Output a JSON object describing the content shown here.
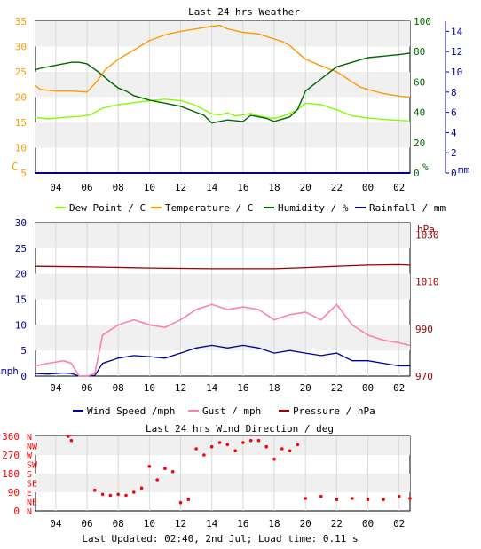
{
  "chart_data": [
    {
      "type": "line",
      "title": "Last 24 hrs Weather",
      "x_ticks": [
        "04",
        "06",
        "08",
        "10",
        "12",
        "14",
        "16",
        "18",
        "20",
        "22",
        "00",
        "02"
      ],
      "y_left": {
        "unit": "C",
        "ticks": [
          5,
          10,
          15,
          20,
          25,
          30,
          35
        ],
        "ylim": [
          5,
          35
        ],
        "color": "#ff9900"
      },
      "y_right1": {
        "unit": "%",
        "ticks": [
          0,
          20,
          40,
          60,
          80,
          100
        ],
        "ylim": [
          0,
          100
        ],
        "color": "#006600"
      },
      "y_right2": {
        "unit": "mm",
        "ticks": [
          0,
          2,
          4,
          6,
          8,
          10,
          12,
          14
        ],
        "ylim": [
          0,
          15
        ],
        "color": "#000099"
      },
      "legend": [
        {
          "name": "Dew Point / C",
          "color": "#80ff00"
        },
        {
          "name": "Temperature / C",
          "color": "#ff9900"
        },
        {
          "name": "Humidity / %",
          "color": "#006600"
        },
        {
          "name": "Rainfall / mm",
          "color": "#000099"
        }
      ],
      "series": [
        {
          "name": "Dew Point / C",
          "axis": "left",
          "color": "#80ff00",
          "x": [
            2.7,
            3.5,
            4.5,
            5.5,
            6.2,
            7,
            8,
            9,
            10,
            11,
            12,
            12.8,
            13.5,
            14,
            14.5,
            15,
            15.5,
            16,
            16.5,
            17,
            17.5,
            18,
            18.5,
            19,
            19.5,
            20,
            21,
            22,
            23,
            24,
            25,
            26,
            26.7
          ],
          "y": [
            16,
            15.7,
            16,
            16.2,
            16.5,
            17.8,
            18.5,
            18.9,
            19.3,
            19.6,
            19.3,
            18.6,
            17.5,
            16.7,
            16.5,
            16.9,
            16.3,
            16.5,
            16.8,
            16.3,
            16,
            15.8,
            16.2,
            16.8,
            17.5,
            18.8,
            18.5,
            17.5,
            16.3,
            15.9,
            15.6,
            15.4,
            15.3
          ]
        },
        {
          "name": "Temperature / C",
          "axis": "left",
          "color": "#ff9900",
          "x": [
            2.7,
            3,
            4,
            5,
            6,
            6.6,
            7.2,
            8,
            9,
            10,
            11,
            12,
            13,
            14,
            14.5,
            15,
            16,
            17,
            18,
            18.5,
            19,
            19.5,
            20,
            21,
            22,
            22.5,
            23,
            23.5,
            24,
            25,
            26,
            26.7
          ],
          "y": [
            22.3,
            21.5,
            21.2,
            21.2,
            21,
            23,
            25.5,
            27.5,
            29.3,
            31.2,
            32.3,
            33,
            33.5,
            34,
            34.2,
            33.5,
            32.8,
            32.5,
            31.5,
            31,
            30.2,
            28.8,
            27.5,
            26.2,
            25,
            24,
            23,
            22,
            21.5,
            20.7,
            20.2,
            20
          ]
        },
        {
          "name": "Humidity / %",
          "axis": "right1",
          "color": "#006600",
          "x": [
            2.7,
            3,
            4,
            5,
            5.5,
            6,
            6.8,
            7.5,
            8,
            8.5,
            9,
            10,
            11,
            12,
            13,
            13.5,
            14,
            14.5,
            15,
            16,
            16.5,
            17,
            17.5,
            18,
            19,
            19.5,
            20,
            20.5,
            21,
            21.5,
            22,
            23,
            24,
            25,
            26,
            26.7
          ],
          "y": [
            68,
            69,
            71,
            73,
            73,
            72,
            66,
            60,
            56,
            54,
            51,
            48,
            46,
            44,
            40,
            38,
            33,
            34,
            35,
            34,
            38,
            37,
            36,
            34,
            37,
            42,
            54,
            58,
            62,
            66,
            70,
            73,
            76,
            77,
            78,
            79
          ]
        },
        {
          "name": "Rainfall / mm",
          "axis": "right2",
          "color": "#000099",
          "x": [
            2.7,
            26.7
          ],
          "y": [
            0,
            0
          ]
        }
      ]
    },
    {
      "type": "line",
      "x_ticks": [
        "04",
        "06",
        "08",
        "10",
        "12",
        "14",
        "16",
        "18",
        "20",
        "22",
        "00",
        "02"
      ],
      "y_left": {
        "unit": "mph",
        "ticks": [
          0,
          5,
          10,
          15,
          20,
          25,
          30
        ],
        "ylim": [
          0,
          30
        ],
        "color": "#000099"
      },
      "y_right": {
        "unit": "hPa",
        "ticks": [
          970,
          990,
          1010,
          1030
        ],
        "ylim": [
          970,
          1035
        ],
        "color": "#990000"
      },
      "legend": [
        {
          "name": "Wind Speed /mph",
          "color": "#000099"
        },
        {
          "name": "Gust / mph",
          "color": "#ff80aa"
        },
        {
          "name": "Pressure / hPa",
          "color": "#990000"
        }
      ],
      "series": [
        {
          "name": "Wind Speed /mph",
          "axis": "left",
          "color": "#000099",
          "x": [
            2.7,
            3.5,
            4.5,
            5,
            5.5,
            6,
            6.5,
            7,
            8,
            9,
            10,
            11,
            12,
            13,
            14,
            15,
            16,
            17,
            18,
            19,
            20,
            21,
            22,
            23,
            24,
            25,
            26,
            26.7
          ],
          "y": [
            0.5,
            0.4,
            0.6,
            0.5,
            0,
            0,
            0.1,
            2.5,
            3.5,
            4,
            3.8,
            3.5,
            4.5,
            5.5,
            6,
            5.5,
            6,
            5.5,
            4.5,
            5,
            4.5,
            4,
            4.5,
            3,
            3,
            2.5,
            2,
            2
          ]
        },
        {
          "name": "Gust / mph",
          "axis": "left",
          "color": "#ff80aa",
          "x": [
            2.7,
            3.5,
            4.5,
            5,
            5.5,
            6,
            6.5,
            7,
            8,
            9,
            10,
            11,
            12,
            13,
            14,
            15,
            16,
            17,
            18,
            19,
            20,
            21,
            22,
            23,
            24,
            25,
            26,
            26.7
          ],
          "y": [
            2,
            2.5,
            3,
            2.5,
            0,
            0,
            0.5,
            8,
            10,
            11,
            10,
            9.5,
            11,
            13,
            14,
            13,
            13.5,
            13,
            11,
            12,
            12.5,
            11,
            14,
            10,
            8,
            7,
            6.5,
            6
          ]
        },
        {
          "name": "Pressure / hPa",
          "axis": "right",
          "color": "#990000",
          "x": [
            2.7,
            6,
            10,
            14,
            18,
            20,
            22,
            24,
            26,
            26.7
          ],
          "y": [
            1016.5,
            1016.3,
            1015.8,
            1015.5,
            1015.5,
            1016,
            1016.5,
            1017,
            1017.2,
            1017
          ]
        }
      ]
    },
    {
      "type": "scatter",
      "title": "Last 24 hrs Wind Direction / deg",
      "x_ticks": [
        "04",
        "06",
        "08",
        "10",
        "12",
        "14",
        "16",
        "18",
        "20",
        "22",
        "00",
        "02"
      ],
      "y_left": {
        "ticks": [
          0,
          45,
          90,
          135,
          180,
          225,
          270,
          315,
          360
        ],
        "tick_labels": [
          "0",
          "",
          "90",
          "",
          "180",
          "",
          "270",
          "",
          "360"
        ],
        "ylim": [
          0,
          360
        ],
        "color": "#ff0000"
      },
      "compass": [
        "N",
        "NE",
        "E",
        "SE",
        "S",
        "SW",
        "W",
        "NW",
        "N"
      ],
      "series": [
        {
          "name": "direction",
          "color": "#ff0000",
          "x": [
            4.8,
            5.0,
            6.5,
            7,
            7.5,
            8,
            8.5,
            9,
            9.5,
            10,
            10.5,
            11,
            11.5,
            12,
            12.5,
            13,
            13.5,
            14,
            14.5,
            15,
            15.5,
            16,
            16.5,
            17,
            17.5,
            18,
            18.5,
            19,
            19.5,
            20,
            21,
            22,
            23,
            24,
            25,
            26,
            26.7
          ],
          "y": [
            370,
            340,
            100,
            80,
            75,
            80,
            75,
            90,
            110,
            215,
            150,
            205,
            190,
            40,
            55,
            300,
            270,
            310,
            330,
            320,
            290,
            330,
            340,
            340,
            310,
            250,
            300,
            290,
            320,
            60,
            70,
            55,
            60,
            55,
            55,
            70,
            60
          ]
        }
      ]
    }
  ],
  "footer": {
    "text": "Last Updated: 02:40, 2nd Jul; Load time: 0.11 s"
  }
}
